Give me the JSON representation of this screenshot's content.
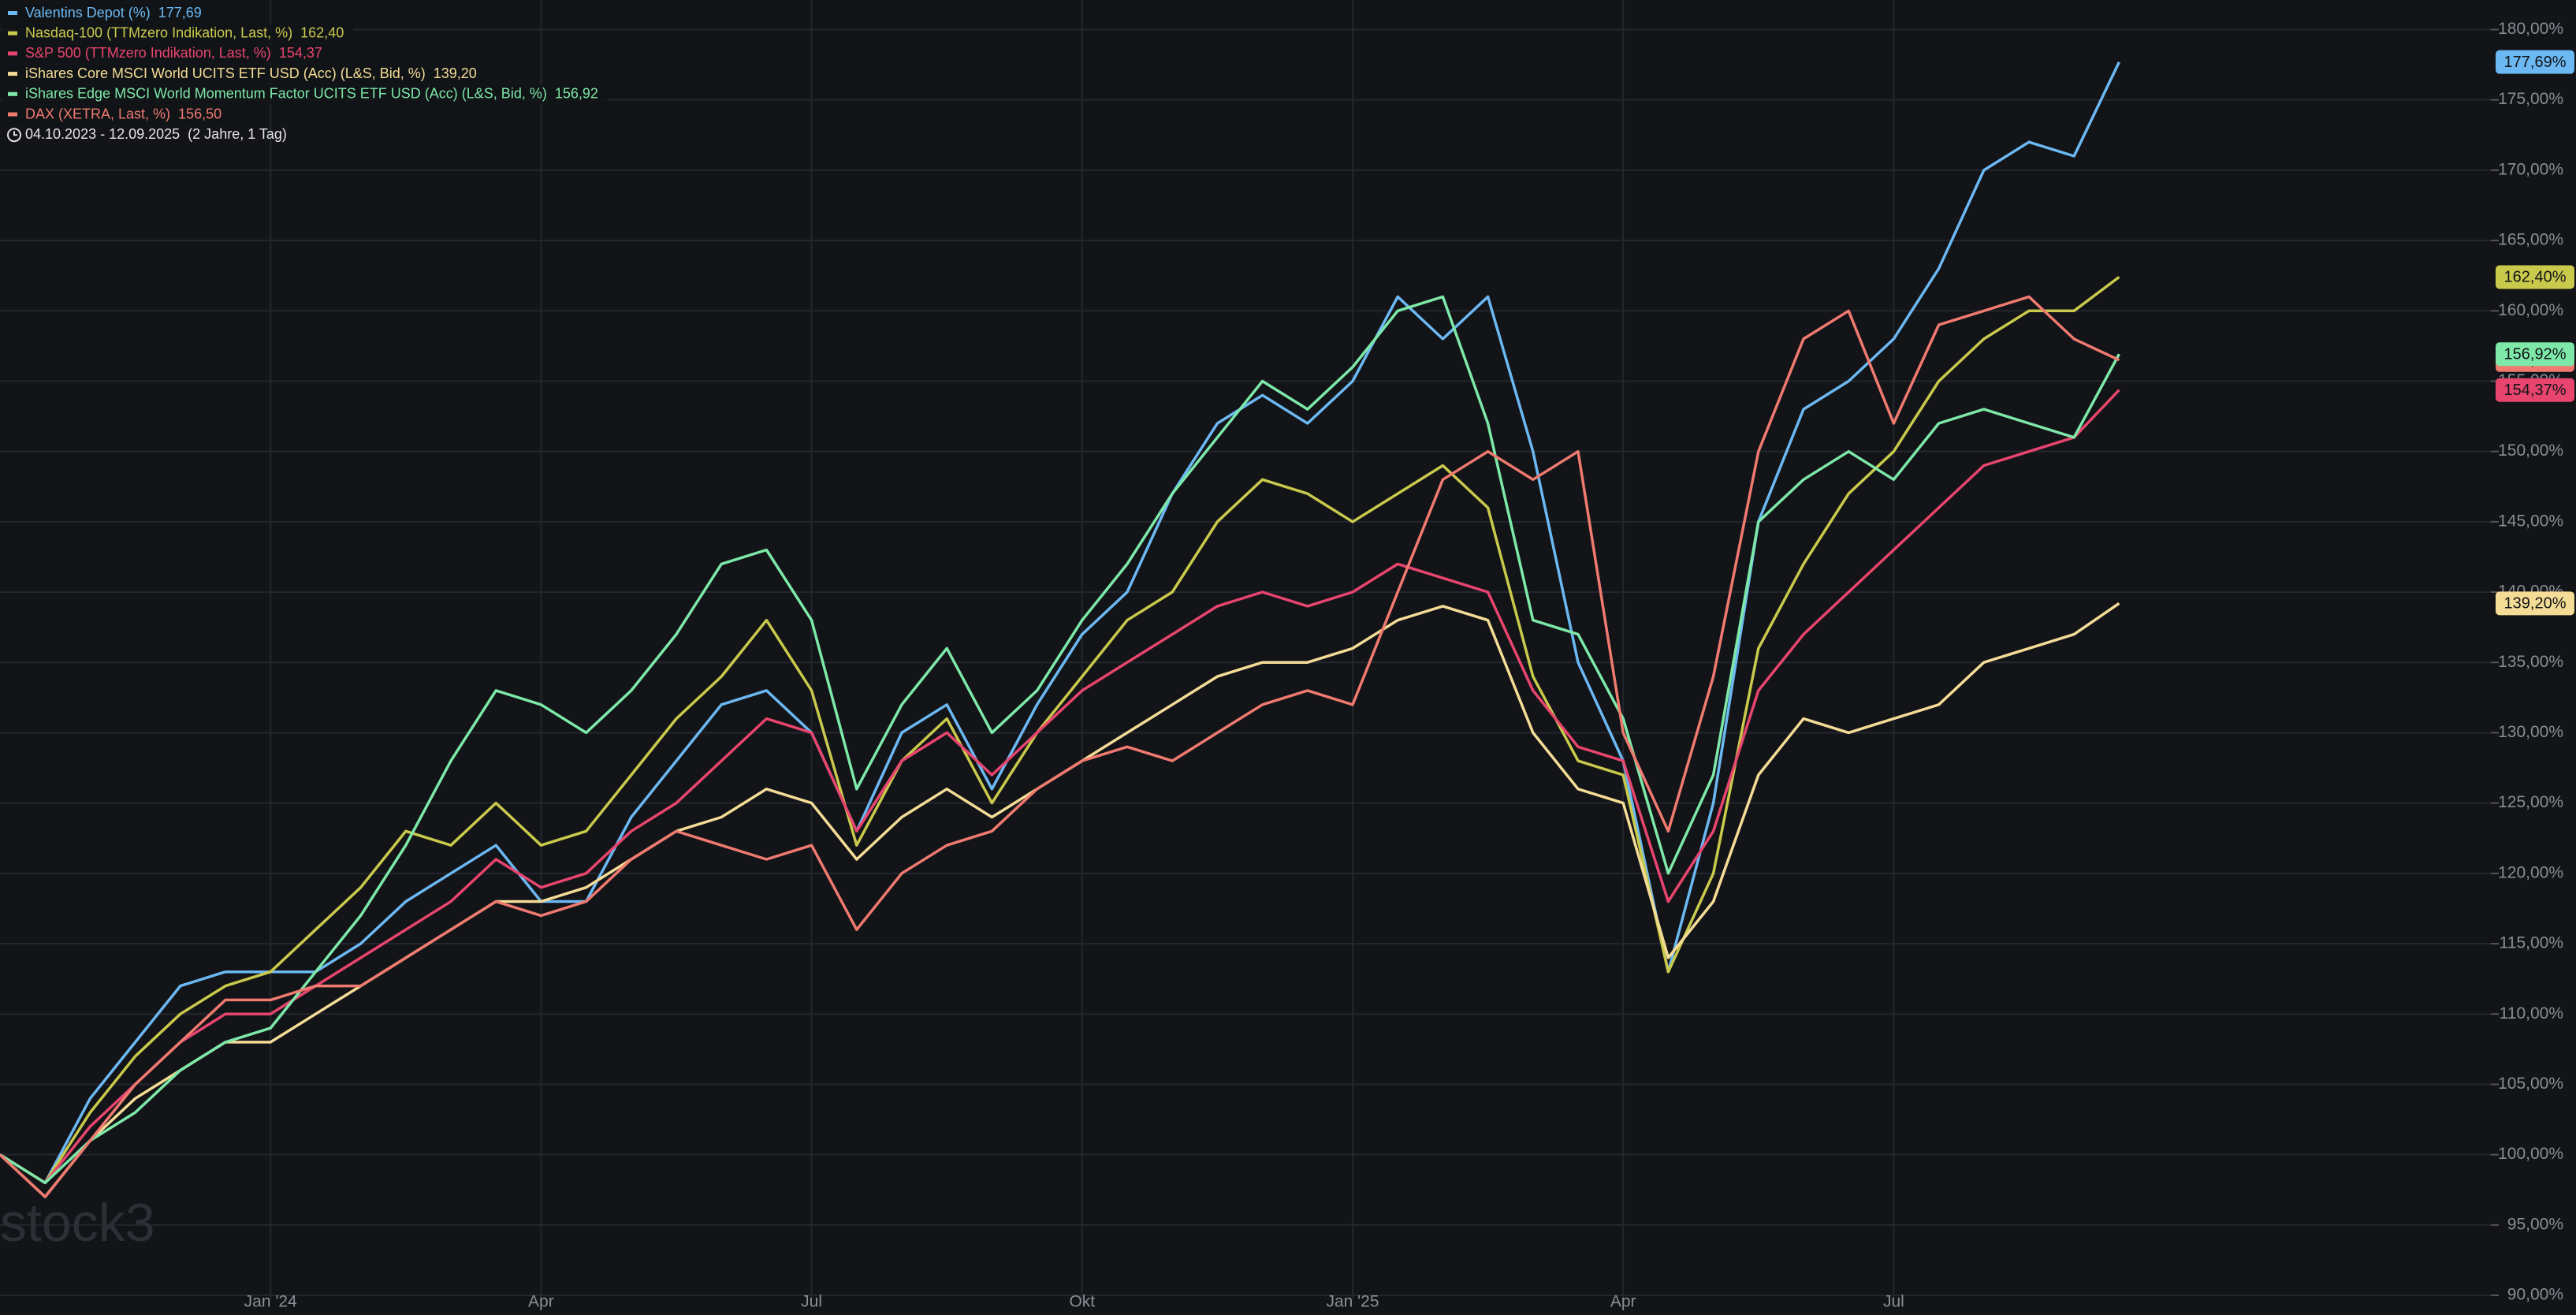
{
  "chart_data": {
    "type": "line",
    "subtitle": "04.10.2023 - 12.09.2025  (2 Jahre, 1 Tag)",
    "watermark": "stock3",
    "categories": [
      null,
      null,
      null,
      null,
      null,
      null,
      "Jan '24",
      null,
      null,
      null,
      null,
      null,
      "Apr",
      null,
      null,
      null,
      null,
      null,
      "Jul",
      null,
      null,
      null,
      null,
      null,
      "Okt",
      null,
      null,
      null,
      null,
      null,
      "Jan '25",
      null,
      null,
      null,
      null,
      null,
      "Apr",
      null,
      null,
      null,
      null,
      null,
      "Jul",
      null,
      null,
      null,
      null,
      null
    ],
    "ylim": [
      88.6,
      182.1
    ],
    "yticks": [
      {
        "value": 90,
        "label": "90,00%"
      },
      {
        "value": 95,
        "label": "95,00%"
      },
      {
        "value": 100,
        "label": "100,00%"
      },
      {
        "value": 105,
        "label": "105,00%"
      },
      {
        "value": 110,
        "label": "110,00%"
      },
      {
        "value": 115,
        "label": "115,00%"
      },
      {
        "value": 120,
        "label": "120,00%"
      },
      {
        "value": 125,
        "label": "125,00%"
      },
      {
        "value": 130,
        "label": "130,00%"
      },
      {
        "value": 135,
        "label": "135,00%"
      },
      {
        "value": 140,
        "label": "140,00%"
      },
      {
        "value": 145,
        "label": "145,00%"
      },
      {
        "value": 150,
        "label": "150,00%"
      },
      {
        "value": 155,
        "label": "155,00%"
      },
      {
        "value": 160,
        "label": "160,00%"
      },
      {
        "value": 165,
        "label": "165,00%"
      },
      {
        "value": 170,
        "label": "170,00%"
      },
      {
        "value": 175,
        "label": "175,00%"
      },
      {
        "value": 180,
        "label": "180,00%"
      }
    ],
    "grid": true,
    "series": [
      {
        "name": "Valentins Depot (%)",
        "color": "#6cb8f2",
        "legend_value": "177,69",
        "badge_label": "177,69%",
        "values": [
          100,
          98,
          104,
          108,
          112,
          113,
          113,
          113,
          115,
          118,
          120,
          122,
          118,
          118,
          124,
          128,
          132,
          133,
          130,
          123,
          130,
          132,
          126,
          132,
          137,
          140,
          147,
          152,
          154,
          152,
          155,
          161,
          158,
          161,
          150,
          135,
          128,
          113,
          125,
          145,
          153,
          155,
          158,
          163,
          170,
          172,
          171,
          177.69
        ]
      },
      {
        "name": "Nasdaq-100 (TTMzero Indikation, Last, %)",
        "color": "#c9c94c",
        "legend_value": "162,40",
        "badge_label": "162,40%",
        "values": [
          100,
          98,
          103,
          107,
          110,
          112,
          113,
          116,
          119,
          123,
          122,
          125,
          122,
          123,
          127,
          131,
          134,
          138,
          133,
          122,
          128,
          131,
          125,
          130,
          134,
          138,
          140,
          145,
          148,
          147,
          145,
          147,
          149,
          146,
          134,
          128,
          127,
          113,
          120,
          136,
          142,
          147,
          150,
          155,
          158,
          160,
          160,
          162.4
        ]
      },
      {
        "name": "S&P 500 (TTMzero Indikation, Last, %)",
        "color": "#e8456e",
        "legend_value": "154,37",
        "badge_label": "154,37%",
        "values": [
          100,
          98,
          102,
          105,
          108,
          110,
          110,
          112,
          114,
          116,
          118,
          121,
          119,
          120,
          123,
          125,
          128,
          131,
          130,
          123,
          128,
          130,
          127,
          130,
          133,
          135,
          137,
          139,
          140,
          139,
          140,
          142,
          141,
          140,
          133,
          129,
          128,
          118,
          123,
          133,
          137,
          140,
          143,
          146,
          149,
          150,
          151,
          154.37
        ]
      },
      {
        "name": "iShares Core MSCI World UCITS ETF USD (Acc) (L&S, Bid, %)",
        "color": "#f5dc96",
        "legend_value": "139,20",
        "badge_label": "139,20%",
        "values": [
          100,
          97,
          101,
          104,
          106,
          108,
          108,
          110,
          112,
          114,
          116,
          118,
          118,
          119,
          121,
          123,
          124,
          126,
          125,
          121,
          124,
          126,
          124,
          126,
          128,
          130,
          132,
          134,
          135,
          135,
          136,
          138,
          139,
          138,
          130,
          126,
          125,
          114,
          118,
          127,
          131,
          130,
          131,
          132,
          135,
          136,
          137,
          139.2
        ]
      },
      {
        "name": "iShares Edge MSCI World Momentum Factor UCITS ETF USD (Acc) (L&S, Bid, %)",
        "color": "#7de8a8",
        "legend_value": "156,92",
        "badge_label": "156,92%",
        "values": [
          100,
          98,
          101,
          103,
          106,
          108,
          109,
          113,
          117,
          122,
          128,
          133,
          132,
          130,
          133,
          137,
          142,
          143,
          138,
          126,
          132,
          136,
          130,
          133,
          138,
          142,
          147,
          151,
          155,
          153,
          156,
          160,
          161,
          152,
          138,
          137,
          131,
          120,
          127,
          145,
          148,
          150,
          148,
          152,
          153,
          152,
          151,
          156.92
        ]
      },
      {
        "name": "DAX (XETRA, Last, %)",
        "color": "#f07a70",
        "legend_value": "156,50",
        "badge_label": "156,50%",
        "values": [
          100,
          97,
          101,
          105,
          108,
          111,
          111,
          112,
          112,
          114,
          116,
          118,
          117,
          118,
          121,
          123,
          122,
          121,
          122,
          116,
          120,
          122,
          123,
          126,
          128,
          129,
          128,
          130,
          132,
          133,
          132,
          140,
          148,
          150,
          148,
          150,
          130,
          123,
          134,
          150,
          158,
          160,
          152,
          159,
          160,
          161,
          158,
          156.5
        ]
      }
    ]
  }
}
